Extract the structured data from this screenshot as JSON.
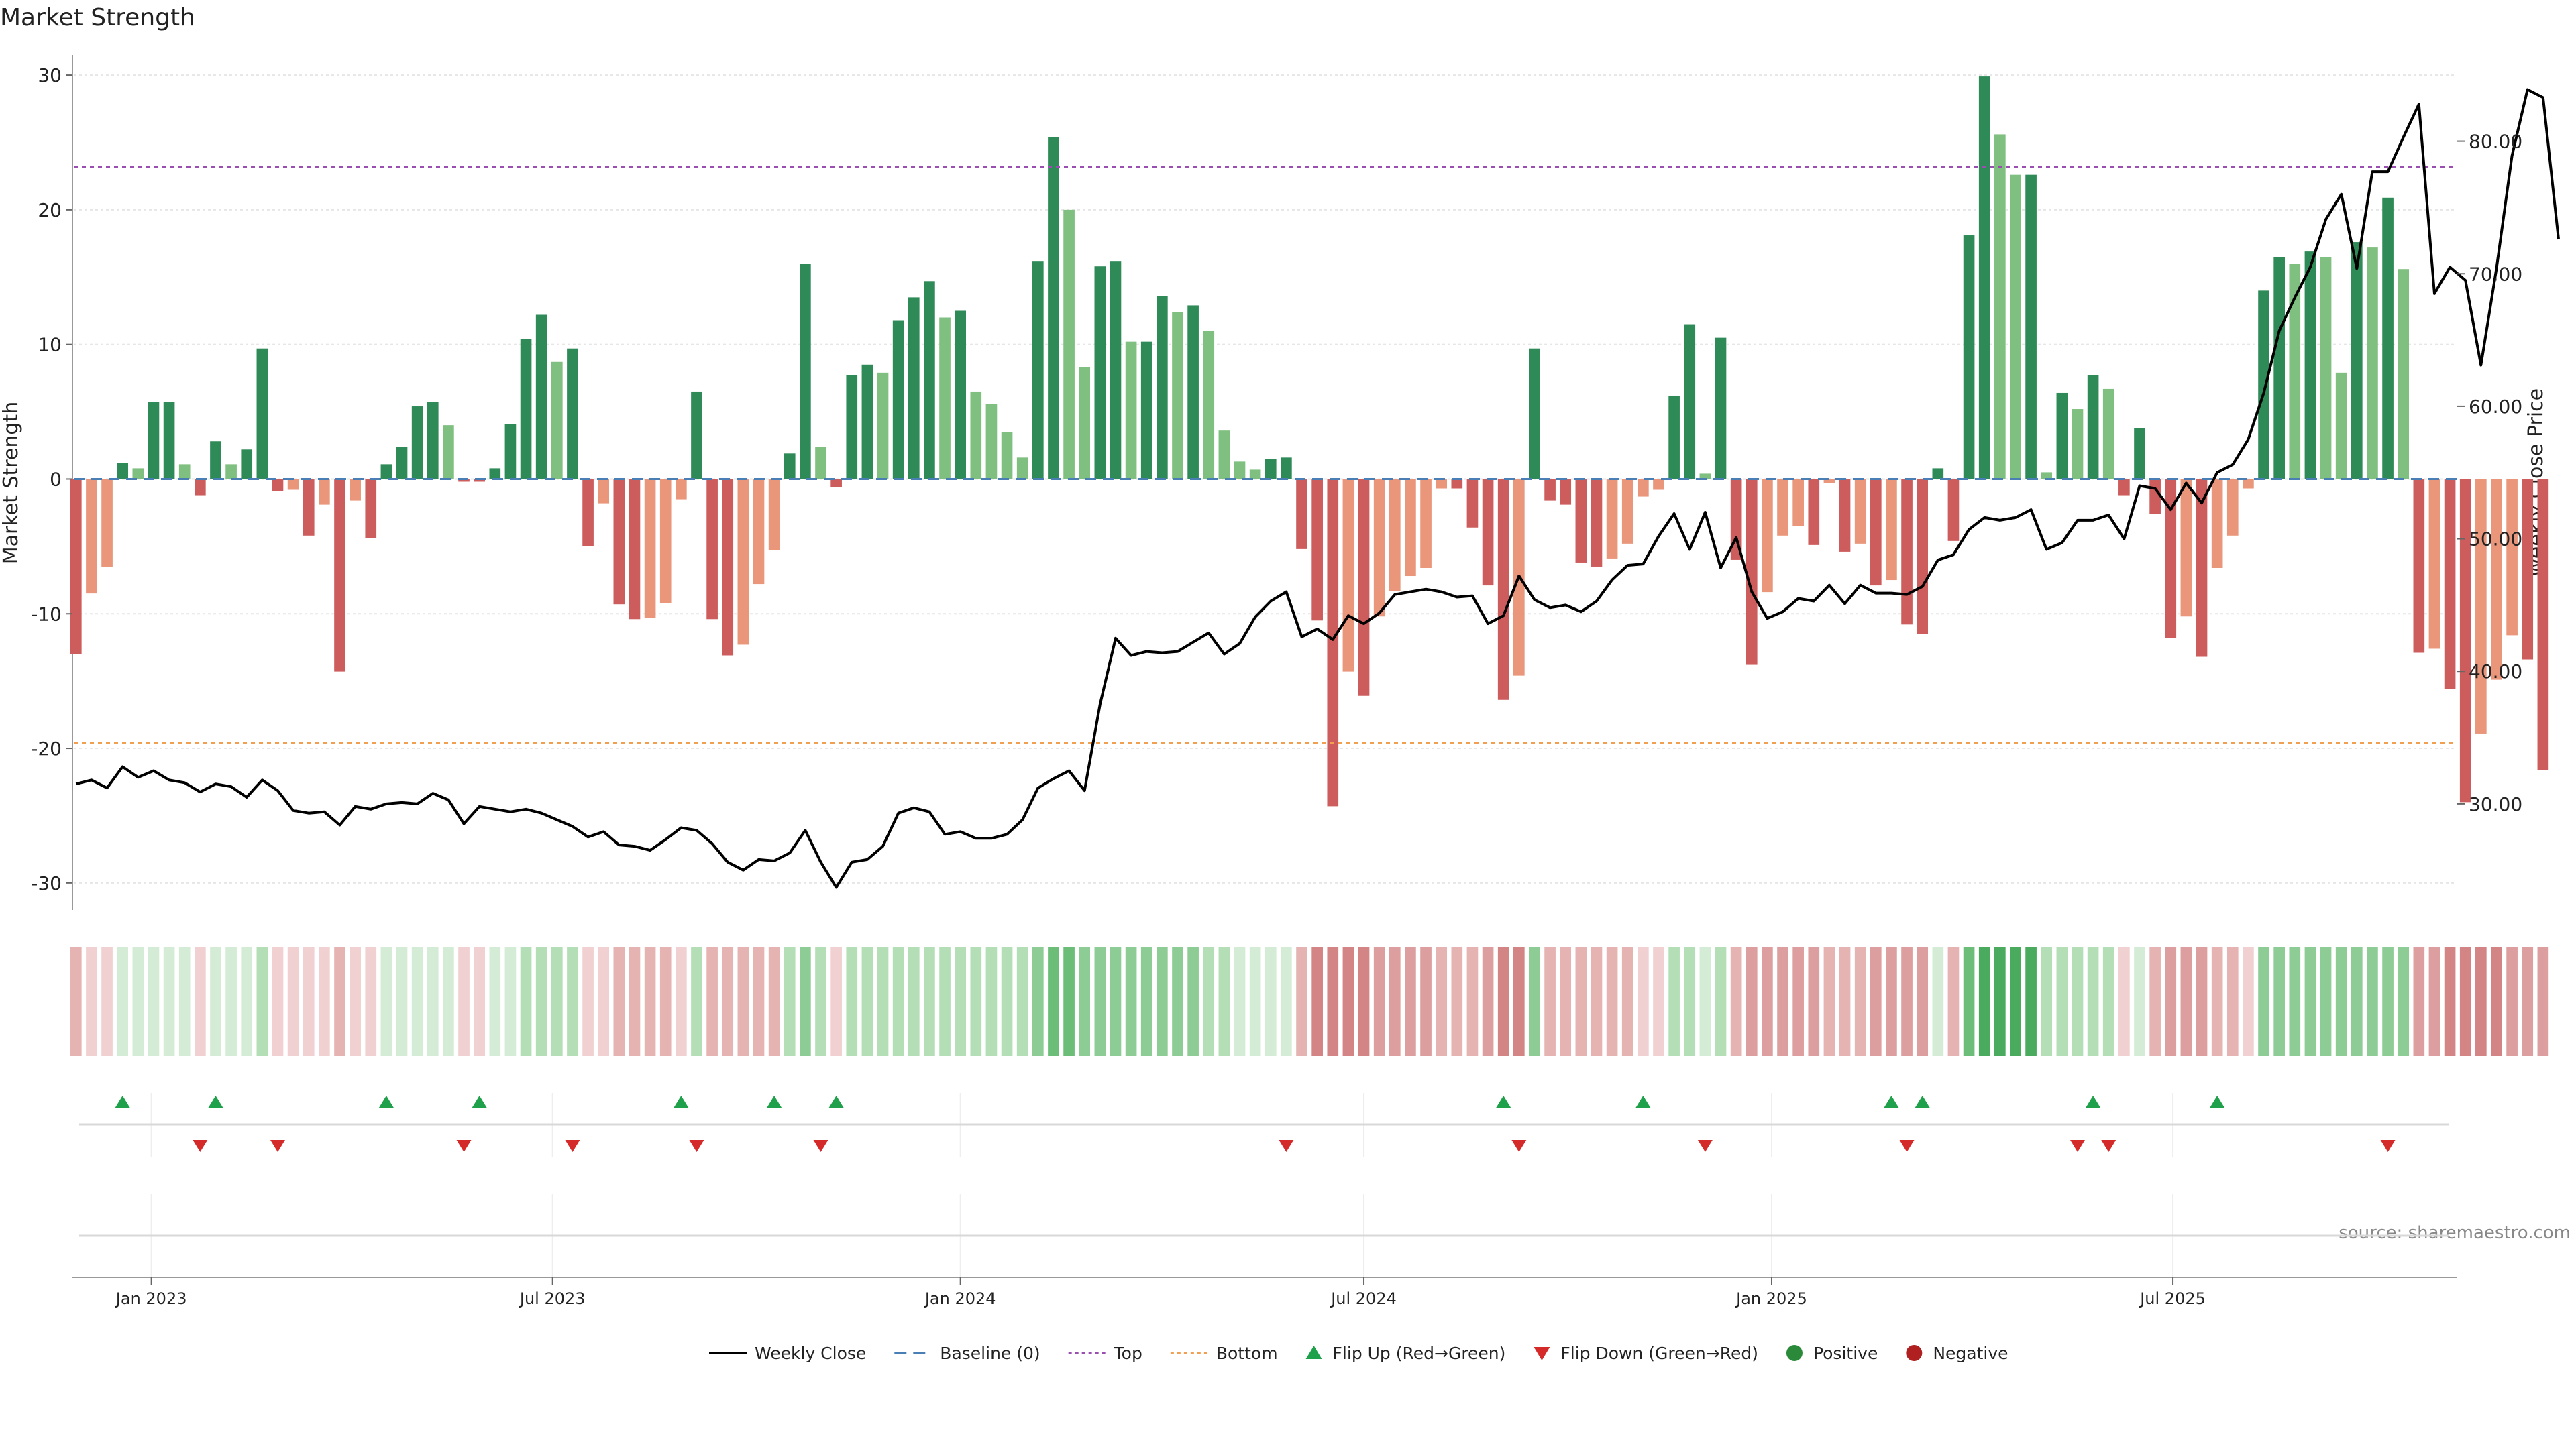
{
  "chart_data": {
    "type": "bar",
    "title": "Market Strength",
    "ylabel": "Market Strength",
    "y2label": "Weekly Close Price",
    "ylim": [
      -32,
      31
    ],
    "y2lim": [
      22,
      86
    ],
    "yticks": [
      -30,
      -20,
      -10,
      0,
      10,
      20,
      30
    ],
    "y2ticks": [
      "30.00",
      "40.00",
      "50.00",
      "60.00",
      "70.00",
      "80.00"
    ],
    "y2tick_values": [
      30,
      40,
      50,
      60,
      70,
      80
    ],
    "xlim": [
      "2022-11-27",
      "2025-11-06"
    ],
    "xticks": [
      {
        "label": "Jan 2023",
        "date": "2023-01-01"
      },
      {
        "label": "Jul 2023",
        "date": "2023-07-01"
      },
      {
        "label": "Jan 2024",
        "date": "2024-01-01"
      },
      {
        "label": "Jul 2024",
        "date": "2024-07-01"
      },
      {
        "label": "Jan 2025",
        "date": "2025-01-01"
      },
      {
        "label": "Jul 2025",
        "date": "2025-07-01"
      }
    ],
    "start_date": "2022-11-28",
    "grid": true,
    "legend_position": "bottom-center",
    "top_level": 23.2,
    "bottom_level": -19.6,
    "baseline": 0,
    "source": "source: sharemaestro.com",
    "strength": [
      -13,
      -8.5,
      -6.5,
      1.2,
      0.8,
      5.7,
      5.7,
      1.1,
      -1.2,
      2.8,
      1.1,
      2.2,
      9.7,
      -0.9,
      -0.8,
      -4.2,
      -1.9,
      -14.3,
      -1.6,
      -4.4,
      1.1,
      2.4,
      5.4,
      5.7,
      4.0,
      -0.2,
      -0.2,
      0.8,
      4.1,
      10.4,
      12.2,
      8.7,
      9.7,
      -5.0,
      -1.8,
      -9.3,
      -10.4,
      -10.3,
      -9.2,
      -1.5,
      6.5,
      -10.4,
      -13.1,
      -12.3,
      -7.8,
      -5.3,
      1.9,
      16.0,
      2.4,
      -0.6,
      7.7,
      8.5,
      7.9,
      11.8,
      13.5,
      14.7,
      12.0,
      12.5,
      6.5,
      5.6,
      3.5,
      1.6,
      16.2,
      25.4,
      20.0,
      8.3,
      15.8,
      16.2,
      10.2,
      10.2,
      13.6,
      12.4,
      12.9,
      11.0,
      3.6,
      1.3,
      0.7,
      1.5,
      1.6,
      -5.2,
      -10.5,
      -24.3,
      -14.3,
      -16.1,
      -10.2,
      -8.3,
      -7.2,
      -6.6,
      -0.7,
      -0.7,
      -3.6,
      -7.9,
      -16.4,
      -14.6,
      9.7,
      -1.6,
      -1.9,
      -6.2,
      -6.5,
      -5.9,
      -4.8,
      -1.3,
      -0.8,
      6.2,
      11.5,
      0.4,
      10.5,
      -6.0,
      -13.8,
      -8.4,
      -4.2,
      -3.5,
      -4.9,
      -0.3,
      -5.4,
      -4.8,
      -7.9,
      -7.5,
      -10.8,
      -11.5,
      0.8,
      -4.6,
      18.1,
      29.9,
      25.6,
      22.6,
      22.6,
      0.5,
      6.4,
      5.2,
      7.7,
      6.7,
      -1.2,
      3.8,
      -2.6,
      -11.8,
      -10.2,
      -13.2,
      -6.6,
      -4.2,
      -0.7,
      14.0,
      16.5,
      16.0,
      16.9,
      16.5,
      7.9,
      17.6,
      17.2,
      20.9,
      15.6,
      -12.9,
      -12.6,
      -15.6,
      -24.0,
      -18.9,
      -14.9,
      -11.6,
      -13.4,
      -21.6
    ],
    "weekly_close": [
      31.5,
      31.8,
      31.2,
      32.8,
      32.0,
      32.5,
      31.8,
      31.6,
      30.9,
      31.5,
      31.3,
      30.5,
      31.8,
      31.0,
      29.5,
      29.3,
      29.4,
      28.4,
      29.8,
      29.6,
      30.0,
      30.1,
      30.0,
      30.8,
      30.3,
      28.5,
      29.8,
      29.6,
      29.4,
      29.6,
      29.3,
      28.8,
      28.3,
      27.5,
      27.9,
      26.9,
      26.8,
      26.5,
      27.3,
      28.2,
      28.0,
      27.0,
      25.6,
      25.0,
      25.8,
      25.7,
      26.3,
      28.0,
      25.6,
      23.7,
      25.6,
      25.8,
      26.8,
      29.3,
      29.7,
      29.4,
      27.7,
      27.9,
      27.4,
      27.4,
      27.7,
      28.8,
      31.2,
      31.9,
      32.5,
      31.0,
      37.5,
      42.5,
      41.2,
      41.5,
      41.4,
      41.5,
      42.2,
      42.9,
      41.3,
      42.1,
      44.1,
      45.3,
      46.0,
      42.6,
      43.2,
      42.4,
      44.2,
      43.6,
      44.4,
      45.8,
      46.0,
      46.2,
      46.0,
      45.6,
      45.7,
      43.6,
      44.2,
      47.2,
      45.4,
      44.8,
      45.0,
      44.5,
      45.3,
      46.9,
      48.0,
      48.1,
      50.2,
      51.9,
      49.2,
      52.0,
      47.8,
      50.1,
      46.0,
      44.0,
      44.5,
      45.5,
      45.3,
      46.5,
      45.1,
      46.5,
      45.9,
      45.9,
      45.8,
      46.4,
      48.4,
      48.8,
      50.7,
      51.6,
      51.4,
      51.6,
      52.2,
      49.2,
      49.7,
      51.4,
      51.4,
      51.8,
      50.0,
      54.0,
      53.8,
      52.2,
      54.2,
      52.7,
      55.0,
      55.6,
      57.5,
      61.0,
      65.7,
      68.2,
      70.5,
      74.1,
      76.0,
      70.4,
      77.7,
      77.7,
      80.3,
      82.8,
      68.5,
      70.5,
      69.5,
      63.1,
      70.4,
      78.9,
      83.9,
      83.3,
      72.6
    ],
    "heat": [
      -2,
      -1,
      -1,
      1,
      1,
      1,
      1,
      1,
      -1,
      1,
      1,
      1,
      2,
      -1,
      -1,
      -1,
      -1,
      -2,
      -1,
      -1,
      1,
      1,
      1,
      1,
      1,
      -1,
      -1,
      1,
      1,
      2,
      2,
      2,
      2,
      -1,
      -1,
      -2,
      -2,
      -2,
      -2,
      -1,
      2,
      -2,
      -2,
      -2,
      -2,
      -2,
      2,
      3,
      2,
      -1,
      2,
      2,
      2,
      2,
      2,
      2,
      2,
      2,
      2,
      2,
      2,
      2,
      3,
      4,
      4,
      3,
      3,
      3,
      3,
      3,
      3,
      3,
      3,
      2,
      2,
      1,
      1,
      1,
      1,
      -2,
      -4,
      -4,
      -4,
      -4,
      -3,
      -3,
      -3,
      -3,
      -2,
      -2,
      -2,
      -3,
      -4,
      -4,
      3,
      -2,
      -2,
      -2,
      -2,
      -2,
      -2,
      -1,
      -1,
      2,
      2,
      1,
      2,
      -2,
      -3,
      -3,
      -3,
      -3,
      -3,
      -2,
      -2,
      -2,
      -3,
      -3,
      -3,
      -3,
      1,
      -2,
      4,
      5,
      5,
      5,
      5,
      2,
      2,
      2,
      2,
      2,
      -1,
      1,
      -2,
      -3,
      -3,
      -3,
      -2,
      -2,
      -1,
      3,
      3,
      3,
      3,
      3,
      3,
      3,
      3,
      3,
      3,
      -3,
      -3,
      -4,
      -4,
      -4,
      -4,
      -3,
      -3,
      -3
    ],
    "flip_up_indices": [
      3,
      9,
      20,
      26,
      39,
      45,
      49,
      92,
      101,
      117,
      119,
      130,
      138
    ],
    "flip_down_indices": [
      8,
      13,
      25,
      32,
      40,
      48,
      78,
      93,
      105,
      118,
      129,
      131,
      149
    ],
    "series": [
      {
        "name": "Weekly Close",
        "role": "line",
        "color": "#000000"
      },
      {
        "name": "Baseline (0)",
        "role": "hline-dashed",
        "color": "#4a7fb5"
      },
      {
        "name": "Top",
        "role": "hline-dotted",
        "color": "#9a4fb0"
      },
      {
        "name": "Bottom",
        "role": "hline-dotted",
        "color": "#f0a050"
      },
      {
        "name": "Flip Up (Red→Green)",
        "role": "marker-up",
        "color": "#1fa04a"
      },
      {
        "name": "Flip Down (Green→Red)",
        "role": "marker-down",
        "color": "#d42a2a"
      },
      {
        "name": "Positive",
        "role": "dot",
        "color": "#2a8a3a"
      },
      {
        "name": "Negative",
        "role": "dot",
        "color": "#b02020"
      }
    ],
    "colors": {
      "strong_pos": "#2e8b57",
      "weak_pos": "#7fbf7f",
      "strong_neg": "#cd5c5c",
      "weak_neg": "#e9967a",
      "heat_pos": [
        "#d4ecd5",
        "#b3deb6",
        "#8dcc95",
        "#6bbd78",
        "#4aaa5e"
      ],
      "heat_neg": [
        "#f0d0d0",
        "#e6b3b3",
        "#dc9e9e",
        "#d38484",
        "#c96b6b"
      ]
    }
  }
}
